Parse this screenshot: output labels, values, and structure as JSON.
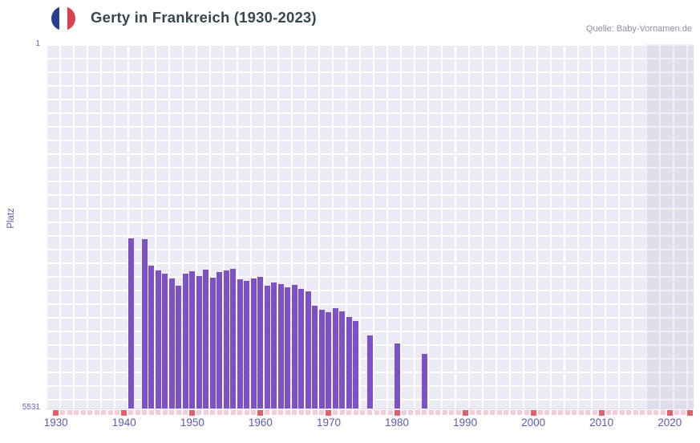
{
  "header": {
    "title": "Gerty in Frankreich (1930-2023)",
    "source": "Quelle: Baby-Vornamen.de"
  },
  "flag": {
    "blue": "#2b3f92",
    "white": "#ffffff",
    "red": "#d8414f"
  },
  "chart_data": {
    "type": "bar",
    "title": "Gerty in Frankreich (1930-2023)",
    "xlabel": "",
    "ylabel": "Platz",
    "y_axis": {
      "min": 1,
      "max": 5531,
      "top_label": "1",
      "bottom_label": "5531",
      "inverted": true
    },
    "x_range": [
      1929,
      2024
    ],
    "x_ticks": [
      "1930",
      "1940",
      "1950",
      "1960",
      "1970",
      "1980",
      "1990",
      "2000",
      "2010",
      "2020"
    ],
    "grid": true,
    "legend": false,
    "plot_background": "#ebebf5",
    "grid_color": "#ffffff",
    "bar_color": "#7d52c4",
    "recent_band": {
      "start_year": 2017,
      "color": "rgba(101,101,161,0.10)"
    },
    "unranked_marker": {
      "color": "#f5cbdc",
      "years_start": 1930,
      "years_end": 2023
    },
    "axis_tick_marker": {
      "color": "#e25f6d",
      "years": [
        1930,
        1940,
        1950,
        1960,
        1970,
        1980,
        1990,
        2000,
        2010,
        2020,
        2023
      ]
    },
    "points": [
      {
        "year": 1941,
        "rank": 2940
      },
      {
        "year": 1943,
        "rank": 2960
      },
      {
        "year": 1944,
        "rank": 3350
      },
      {
        "year": 1945,
        "rank": 3430
      },
      {
        "year": 1946,
        "rank": 3480
      },
      {
        "year": 1947,
        "rank": 3550
      },
      {
        "year": 1948,
        "rank": 3660
      },
      {
        "year": 1949,
        "rank": 3480
      },
      {
        "year": 1950,
        "rank": 3440
      },
      {
        "year": 1951,
        "rank": 3510
      },
      {
        "year": 1952,
        "rank": 3420
      },
      {
        "year": 1953,
        "rank": 3540
      },
      {
        "year": 1954,
        "rank": 3450
      },
      {
        "year": 1955,
        "rank": 3430
      },
      {
        "year": 1956,
        "rank": 3400
      },
      {
        "year": 1957,
        "rank": 3560
      },
      {
        "year": 1958,
        "rank": 3590
      },
      {
        "year": 1959,
        "rank": 3550
      },
      {
        "year": 1960,
        "rank": 3520
      },
      {
        "year": 1961,
        "rank": 3660
      },
      {
        "year": 1962,
        "rank": 3610
      },
      {
        "year": 1963,
        "rank": 3630
      },
      {
        "year": 1964,
        "rank": 3680
      },
      {
        "year": 1965,
        "rank": 3650
      },
      {
        "year": 1966,
        "rank": 3710
      },
      {
        "year": 1967,
        "rank": 3740
      },
      {
        "year": 1968,
        "rank": 3960
      },
      {
        "year": 1969,
        "rank": 4020
      },
      {
        "year": 1970,
        "rank": 4060
      },
      {
        "year": 1971,
        "rank": 4000
      },
      {
        "year": 1972,
        "rank": 4050
      },
      {
        "year": 1973,
        "rank": 4130
      },
      {
        "year": 1974,
        "rank": 4200
      },
      {
        "year": 1976,
        "rank": 4410
      },
      {
        "year": 1980,
        "rank": 4540
      },
      {
        "year": 1984,
        "rank": 4690
      }
    ]
  }
}
